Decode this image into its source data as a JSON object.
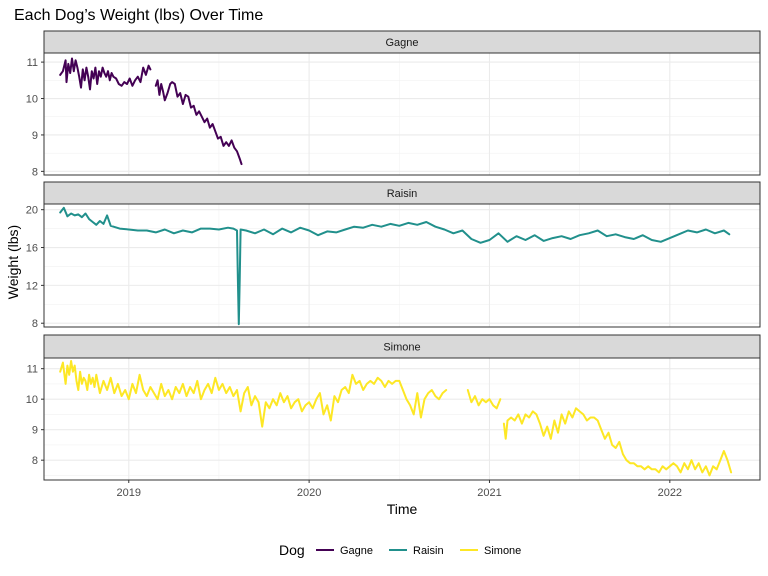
{
  "chart_data": {
    "type": "line",
    "title": "Each Dog’s Weight (lbs) Over Time",
    "xlabel": "Time",
    "ylabel": "Weight  (lbs)",
    "x_ticks": [
      "2019",
      "2020",
      "2021",
      "2022"
    ],
    "legend": {
      "title": "Dog",
      "position": "bottom"
    },
    "grid": true,
    "x_range": [
      2018.53,
      2022.5
    ],
    "panels": [
      {
        "name": "Gagne",
        "color": "#440154",
        "ylim": [
          7.9,
          11.25
        ],
        "y_ticks": [
          8,
          9,
          10,
          11
        ],
        "segments": [
          {
            "x": [
              2018.62,
              2018.635,
              2018.65,
              2018.655,
              2018.665,
              2018.675,
              2018.685,
              2018.695,
              2018.705,
              2018.715,
              2018.725,
              2018.735,
              2018.745,
              2018.755,
              2018.765,
              2018.775,
              2018.785,
              2018.795,
              2018.805,
              2018.815,
              2018.825,
              2018.835,
              2018.845,
              2018.855,
              2018.865,
              2018.875,
              2018.885,
              2018.895,
              2018.905,
              2018.915,
              2018.93,
              2018.945,
              2018.96,
              2018.975,
              2018.99,
              2019.005,
              2019.02,
              2019.035,
              2019.05,
              2019.065,
              2019.08,
              2019.095,
              2019.11,
              2019.12
            ],
            "y": [
              10.65,
              10.75,
              11.05,
              10.45,
              10.95,
              10.7,
              11.1,
              10.75,
              11.05,
              10.85,
              10.6,
              10.3,
              10.8,
              10.5,
              10.85,
              10.6,
              10.25,
              10.75,
              10.55,
              10.85,
              10.4,
              10.75,
              10.6,
              10.85,
              10.7,
              10.6,
              10.75,
              10.5,
              10.7,
              10.6,
              10.55,
              10.4,
              10.35,
              10.45,
              10.4,
              10.55,
              10.35,
              10.5,
              10.6,
              10.45,
              10.85,
              10.65,
              10.9,
              10.8
            ]
          },
          {
            "x": [
              2019.15,
              2019.16,
              2019.17,
              2019.18,
              2019.19,
              2019.2,
              2019.215,
              2019.23,
              2019.24,
              2019.255,
              2019.27,
              2019.285,
              2019.3,
              2019.315,
              2019.33,
              2019.345,
              2019.36,
              2019.375,
              2019.39,
              2019.405,
              2019.42,
              2019.435,
              2019.45,
              2019.465,
              2019.48,
              2019.495,
              2019.51,
              2019.525,
              2019.54,
              2019.555,
              2019.57,
              2019.585,
              2019.6,
              2019.615,
              2019.625
            ],
            "y": [
              10.35,
              10.5,
              10.1,
              10.4,
              10.2,
              9.95,
              10.15,
              10.4,
              10.45,
              10.4,
              10.05,
              10.15,
              9.85,
              10.1,
              10.05,
              9.75,
              9.8,
              9.55,
              9.65,
              9.5,
              9.35,
              9.45,
              9.2,
              9.3,
              9.1,
              8.9,
              8.95,
              8.7,
              8.8,
              8.7,
              8.85,
              8.65,
              8.55,
              8.35,
              8.2
            ]
          }
        ]
      },
      {
        "name": "Raisin",
        "color": "#21908C",
        "ylim": [
          7.6,
          20.6
        ],
        "y_ticks": [
          8,
          12,
          16,
          20
        ],
        "segments": [
          {
            "x": [
              2018.62,
              2018.64,
              2018.66,
              2018.68,
              2018.7,
              2018.72,
              2018.74,
              2018.76,
              2018.78,
              2018.8,
              2018.82,
              2018.84,
              2018.86,
              2018.88,
              2018.9,
              2018.95,
              2019.0,
              2019.05,
              2019.1,
              2019.15,
              2019.2,
              2019.25,
              2019.3,
              2019.35,
              2019.4,
              2019.45,
              2019.5,
              2019.55,
              2019.58,
              2019.6,
              2019.605,
              2019.61,
              2019.615,
              2019.62,
              2019.65,
              2019.7,
              2019.75,
              2019.8,
              2019.85,
              2019.9,
              2019.95,
              2020.0,
              2020.05,
              2020.1,
              2020.15,
              2020.2,
              2020.25,
              2020.3,
              2020.35,
              2020.4,
              2020.45,
              2020.5,
              2020.55,
              2020.6,
              2020.65,
              2020.7,
              2020.75,
              2020.8,
              2020.85,
              2020.9,
              2020.95,
              2021.0,
              2021.05,
              2021.1,
              2021.15,
              2021.2,
              2021.25,
              2021.3,
              2021.35,
              2021.4,
              2021.45,
              2021.5,
              2021.55,
              2021.6,
              2021.65,
              2021.7,
              2021.75,
              2021.8,
              2021.85,
              2021.9,
              2021.95,
              2022.0,
              2022.05,
              2022.1,
              2022.15,
              2022.2,
              2022.25,
              2022.3,
              2022.33
            ],
            "y": [
              19.7,
              20.2,
              19.3,
              19.6,
              19.4,
              19.5,
              19.2,
              19.6,
              19.0,
              18.7,
              18.4,
              18.8,
              18.5,
              19.4,
              18.3,
              18.0,
              17.9,
              17.8,
              17.8,
              17.6,
              17.9,
              17.5,
              17.8,
              17.6,
              18.0,
              18.0,
              17.9,
              18.1,
              18.0,
              17.8,
              12.5,
              7.9,
              12.5,
              17.9,
              17.8,
              17.5,
              17.9,
              17.4,
              18.0,
              17.6,
              18.1,
              17.8,
              17.3,
              17.7,
              17.6,
              17.9,
              18.2,
              18.1,
              18.4,
              18.2,
              18.5,
              18.3,
              18.6,
              18.4,
              18.7,
              18.2,
              17.9,
              17.5,
              17.8,
              16.9,
              16.5,
              16.8,
              17.5,
              16.6,
              17.2,
              16.8,
              17.3,
              16.7,
              17.0,
              17.2,
              16.9,
              17.3,
              17.5,
              17.8,
              17.2,
              17.4,
              17.1,
              16.9,
              17.3,
              16.8,
              16.6,
              17.0,
              17.4,
              17.8,
              17.6,
              17.9,
              17.5,
              17.8,
              17.4
            ]
          }
        ]
      },
      {
        "name": "Simone",
        "color": "#FDE725",
        "ylim": [
          7.35,
          11.35
        ],
        "y_ticks": [
          8,
          9,
          10,
          11
        ],
        "segments": [
          {
            "x": [
              2018.62,
              2018.635,
              2018.65,
              2018.66,
              2018.67,
              2018.68,
              2018.69,
              2018.7,
              2018.71,
              2018.72,
              2018.73,
              2018.74,
              2018.75,
              2018.76,
              2018.77,
              2018.78,
              2018.79,
              2018.8,
              2018.81,
              2018.82,
              2018.84,
              2018.86,
              2018.88,
              2018.9,
              2018.92,
              2018.94,
              2018.96,
              2018.98,
              2019.0,
              2019.02,
              2019.04,
              2019.06,
              2019.08,
              2019.1,
              2019.12,
              2019.14,
              2019.16,
              2019.18,
              2019.2,
              2019.22,
              2019.24,
              2019.26,
              2019.28,
              2019.3,
              2019.32,
              2019.34,
              2019.36,
              2019.38,
              2019.4,
              2019.42,
              2019.44,
              2019.46,
              2019.48,
              2019.5,
              2019.52,
              2019.54,
              2019.56,
              2019.58,
              2019.6,
              2019.62,
              2019.64,
              2019.66,
              2019.68,
              2019.7,
              2019.72,
              2019.74,
              2019.76,
              2019.78,
              2019.8,
              2019.82,
              2019.84,
              2019.86,
              2019.88,
              2019.9,
              2019.92,
              2019.94,
              2019.96,
              2019.98,
              2020.0,
              2020.02,
              2020.04,
              2020.06,
              2020.08,
              2020.1,
              2020.12,
              2020.14,
              2020.16,
              2020.18,
              2020.2,
              2020.22,
              2020.24,
              2020.26,
              2020.28,
              2020.3,
              2020.32,
              2020.34,
              2020.36,
              2020.38,
              2020.4,
              2020.42,
              2020.44,
              2020.46,
              2020.48,
              2020.5,
              2020.52,
              2020.54,
              2020.56,
              2020.58,
              2020.6,
              2020.62,
              2020.64,
              2020.66,
              2020.68,
              2020.7,
              2020.72,
              2020.74,
              2020.76
            ],
            "y": [
              10.9,
              11.2,
              10.5,
              11.1,
              10.8,
              11.25,
              10.9,
              11.1,
              10.6,
              10.3,
              10.9,
              10.5,
              10.7,
              10.6,
              10.3,
              10.8,
              10.5,
              10.7,
              10.4,
              10.8,
              10.2,
              10.6,
              10.3,
              10.7,
              10.2,
              10.5,
              10.1,
              10.3,
              10.0,
              10.5,
              10.2,
              10.8,
              10.3,
              10.1,
              10.4,
              10.2,
              10.0,
              10.5,
              10.1,
              10.3,
              10.0,
              10.4,
              10.2,
              10.5,
              10.1,
              10.4,
              10.2,
              10.6,
              10.0,
              10.3,
              10.5,
              10.2,
              10.7,
              10.3,
              10.5,
              10.2,
              10.4,
              10.1,
              10.3,
              9.6,
              10.2,
              10.4,
              9.8,
              10.1,
              9.9,
              9.1,
              9.9,
              9.7,
              10.0,
              9.8,
              10.2,
              9.9,
              10.1,
              9.7,
              9.9,
              10.0,
              9.6,
              9.8,
              9.9,
              9.7,
              10.0,
              10.2,
              9.5,
              9.8,
              9.3,
              10.1,
              9.9,
              10.3,
              10.4,
              10.2,
              10.8,
              10.5,
              10.6,
              10.3,
              10.5,
              10.6,
              10.5,
              10.7,
              10.6,
              10.4,
              10.6,
              10.5,
              10.6,
              10.6,
              10.3,
              10.0,
              9.8,
              9.5,
              10.2,
              9.4,
              10.0,
              10.2,
              10.3,
              10.1,
              10.0,
              10.2,
              10.3
            ]
          },
          {
            "x": [
              2020.88,
              2020.9,
              2020.92,
              2020.94,
              2020.96,
              2020.98,
              2021.0,
              2021.02,
              2021.04,
              2021.06
            ],
            "y": [
              10.3,
              9.9,
              10.1,
              9.8,
              10.0,
              9.9,
              10.0,
              9.8,
              9.7,
              10.0
            ]
          },
          {
            "x": [
              2021.08,
              2021.09,
              2021.1,
              2021.12,
              2021.14,
              2021.16,
              2021.18,
              2021.2,
              2021.22,
              2021.24,
              2021.26,
              2021.28,
              2021.3,
              2021.32,
              2021.34,
              2021.36,
              2021.38,
              2021.4,
              2021.42,
              2021.44,
              2021.46,
              2021.48,
              2021.5,
              2021.52,
              2021.54,
              2021.56,
              2021.58,
              2021.6,
              2021.62,
              2021.64,
              2021.66,
              2021.68,
              2021.7,
              2021.72,
              2021.74,
              2021.76,
              2021.78,
              2021.8,
              2021.82,
              2021.84,
              2021.86,
              2021.88,
              2021.9,
              2021.92,
              2021.94,
              2021.96,
              2021.98,
              2022.0,
              2022.02,
              2022.04,
              2022.06,
              2022.08,
              2022.1,
              2022.12,
              2022.14,
              2022.16,
              2022.18,
              2022.2,
              2022.22,
              2022.24,
              2022.26,
              2022.28,
              2022.3,
              2022.32,
              2022.34
            ],
            "y": [
              9.2,
              8.7,
              9.3,
              9.4,
              9.3,
              9.5,
              9.2,
              9.5,
              9.4,
              9.6,
              9.5,
              9.2,
              8.8,
              9.1,
              8.7,
              9.3,
              8.9,
              9.5,
              9.2,
              9.6,
              9.4,
              9.7,
              9.6,
              9.5,
              9.3,
              9.4,
              9.4,
              9.3,
              9.0,
              8.7,
              8.9,
              8.5,
              8.4,
              8.6,
              8.2,
              8.0,
              7.9,
              7.9,
              7.8,
              7.8,
              7.7,
              7.8,
              7.7,
              7.7,
              7.6,
              7.8,
              7.7,
              7.8,
              7.9,
              7.8,
              7.6,
              7.9,
              7.7,
              8.0,
              7.7,
              7.9,
              7.6,
              7.8,
              7.5,
              7.8,
              7.7,
              8.0,
              8.3,
              8.0,
              7.6
            ]
          }
        ]
      }
    ]
  }
}
